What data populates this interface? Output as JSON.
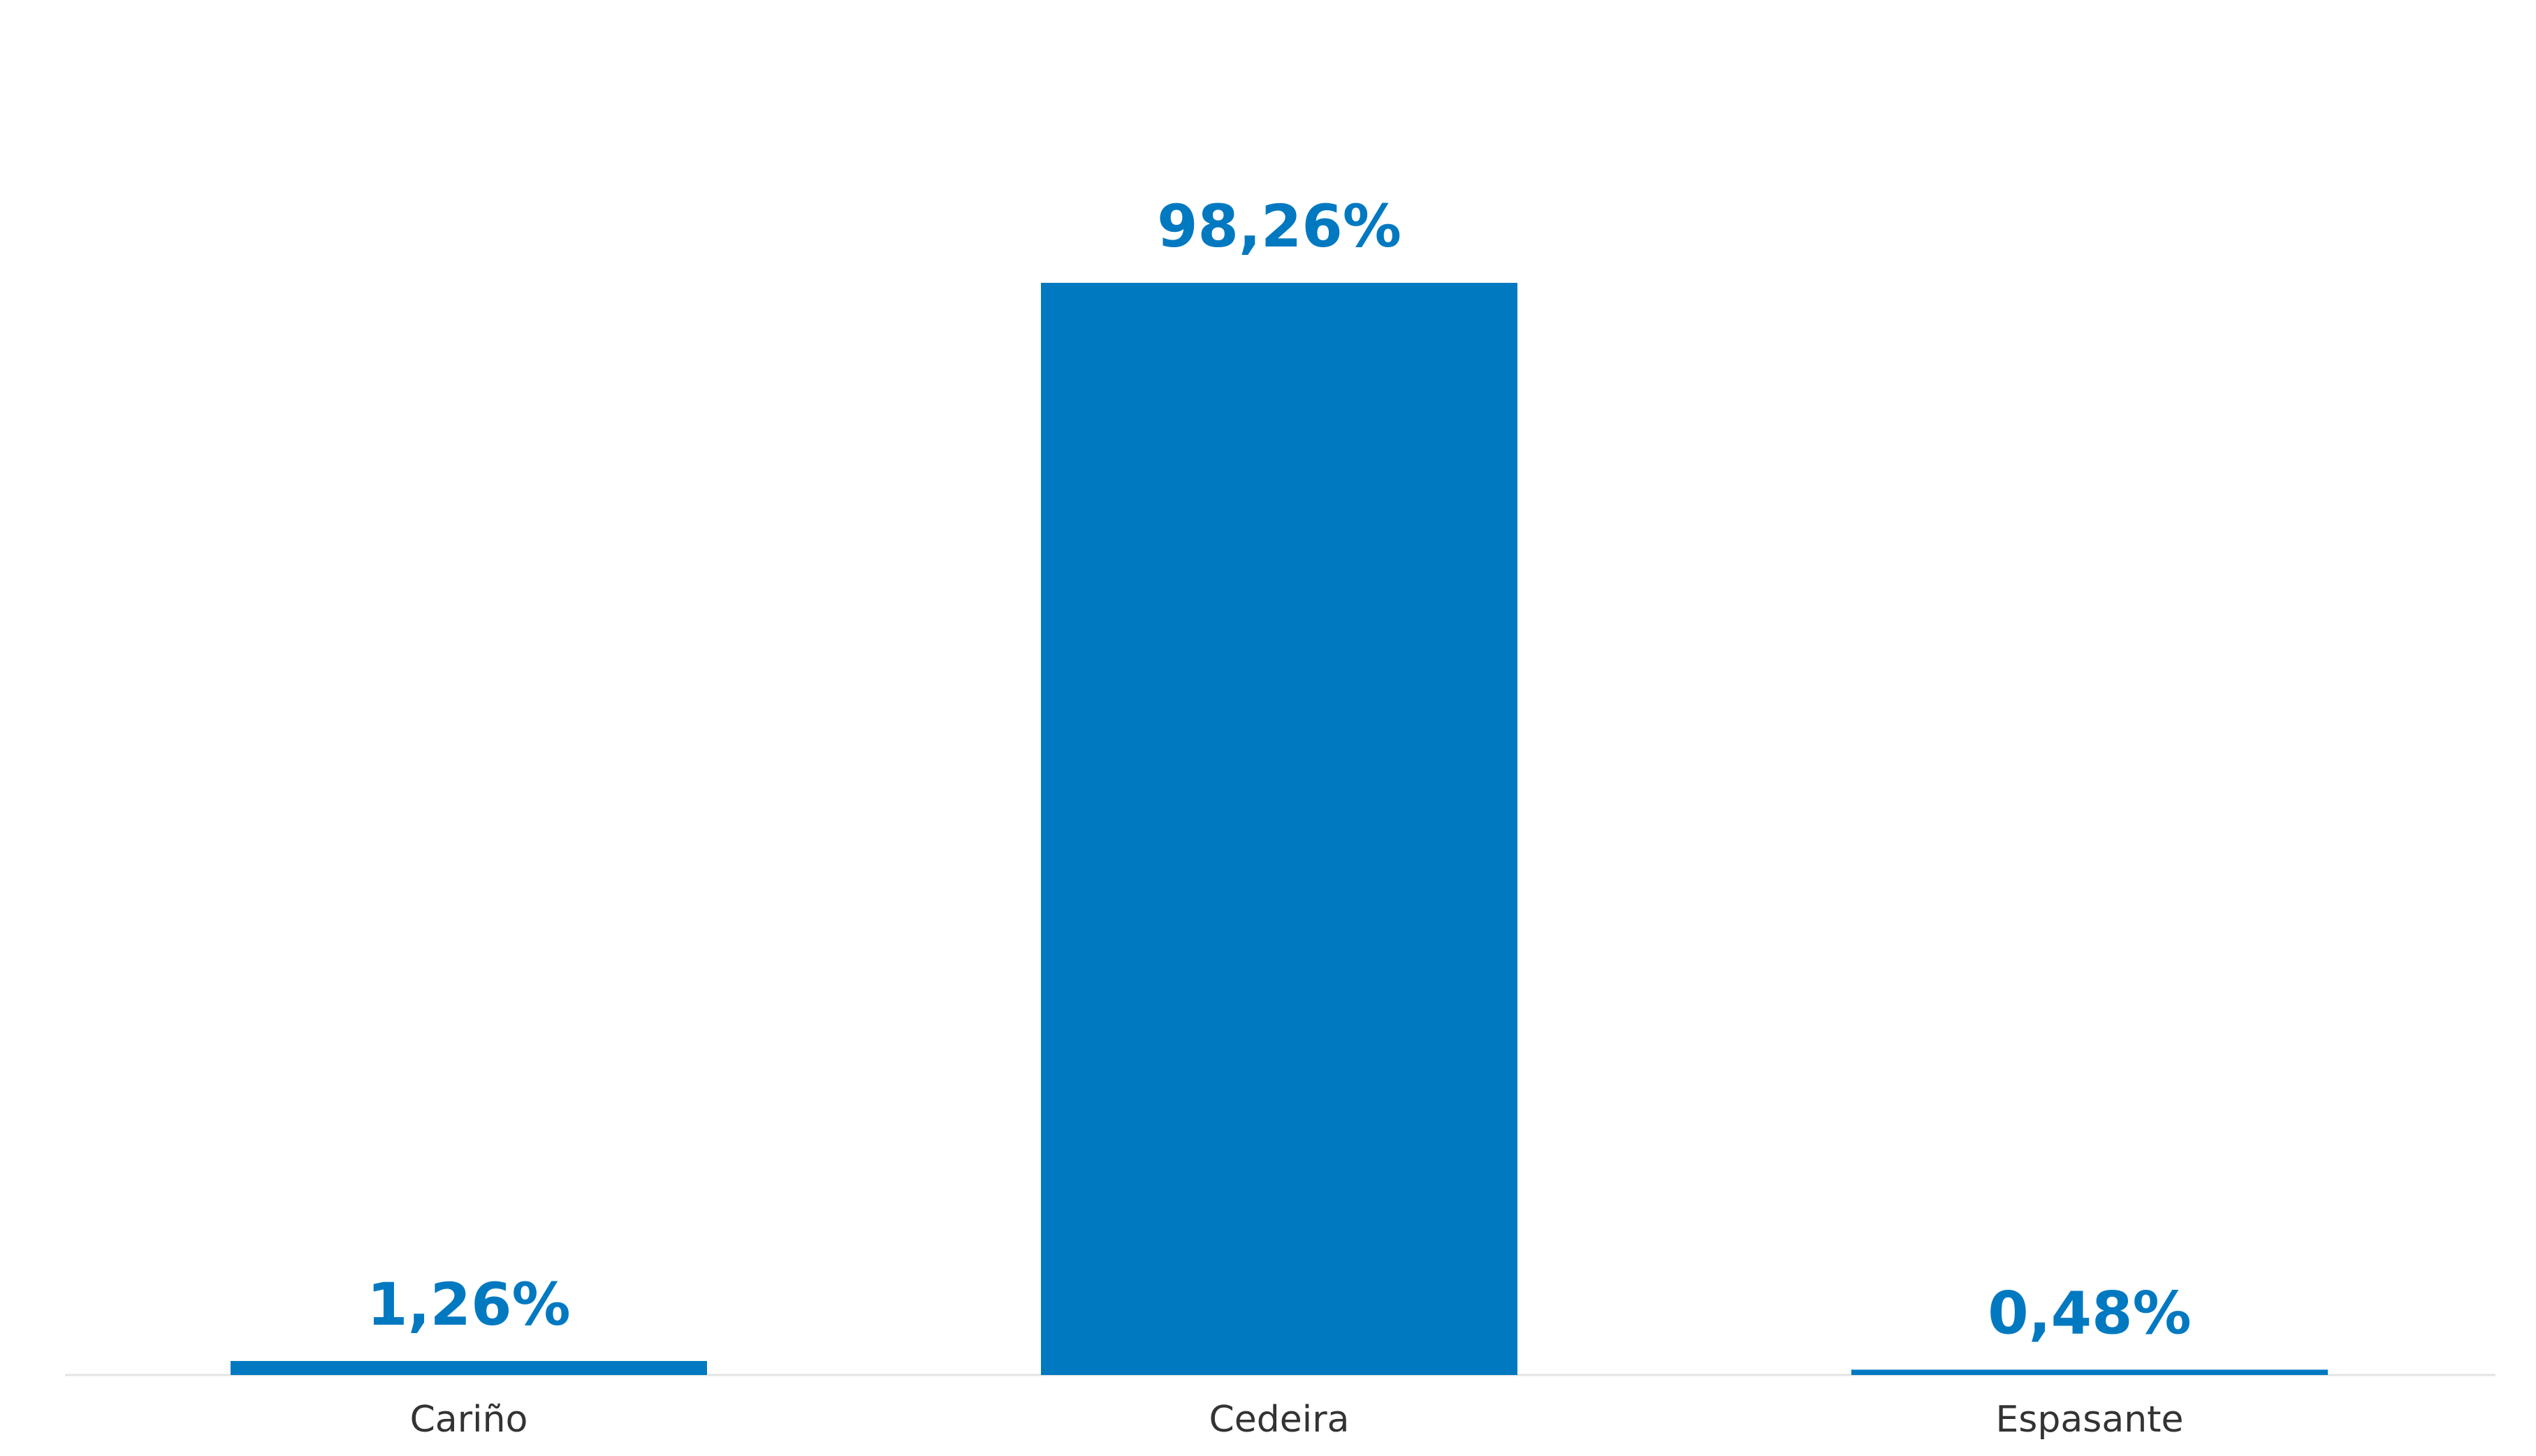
{
  "chart_data": {
    "type": "bar",
    "categories": [
      "Cariño",
      "Cedeira",
      "Espasante"
    ],
    "values": [
      1.26,
      98.26,
      0.48
    ],
    "value_labels": [
      "1,26%",
      "98,26%",
      "0,48%"
    ],
    "color": "#0079c1"
  }
}
